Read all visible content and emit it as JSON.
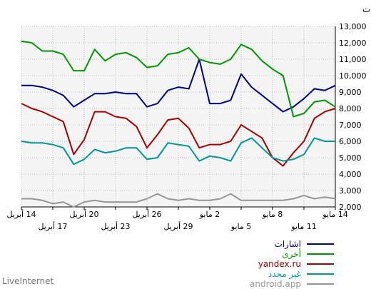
{
  "chart_data": {
    "type": "line",
    "title": "المرات",
    "y_ticks": [
      "2,000",
      "3,000",
      "4,000",
      "5,000",
      "6,000",
      "7,000",
      "8,000",
      "9,000",
      "10,000",
      "11,000",
      "12,000",
      "13,000"
    ],
    "ylim": [
      2000,
      13000
    ],
    "grid": true,
    "x_top_labels": [
      "14 مايو",
      "8 مايو",
      "2 مايو",
      "26 أبريل",
      "20 أبريل",
      "14 أبريل"
    ],
    "x_bottom_labels": [
      "11 مايو",
      "5 مايو",
      "29 أبريل",
      "23 أبريل",
      "17 أبريل"
    ],
    "x_range_days": 30,
    "legend_position": "bottom-right",
    "series": [
      {
        "name": "اشارات",
        "color": "#00007f",
        "values": [
          9400,
          9100,
          9200,
          8600,
          8100,
          7800,
          8300,
          8800,
          9300,
          10100,
          8500,
          8300,
          8300,
          11000,
          9200,
          9300,
          9100,
          8300,
          8100,
          8900,
          8900,
          9000,
          8900,
          8900,
          8500,
          8100,
          8800,
          9100,
          9300,
          9400,
          9400
        ]
      },
      {
        "name": "أخرى",
        "color": "#009600",
        "values": [
          8100,
          8500,
          8400,
          7700,
          7500,
          10000,
          10400,
          10900,
          11600,
          11900,
          11000,
          10700,
          10800,
          11000,
          11700,
          11400,
          11300,
          10600,
          10500,
          11100,
          11400,
          11300,
          10900,
          11600,
          10300,
          10300,
          11300,
          11500,
          11500,
          12000,
          12100
        ]
      },
      {
        "name": "yandex.ru",
        "color": "#a00000",
        "values": [
          8000,
          7800,
          7400,
          6000,
          5300,
          4500,
          5000,
          6200,
          6600,
          7000,
          6000,
          5800,
          5800,
          5600,
          6800,
          7400,
          7300,
          6400,
          5600,
          6900,
          7400,
          7500,
          7800,
          7800,
          6100,
          5200,
          7200,
          7500,
          7800,
          8000,
          8300
        ]
      },
      {
        "name": "غير محدد",
        "color": "#009696",
        "values": [
          6000,
          6000,
          6200,
          5200,
          4900,
          4800,
          5000,
          5600,
          6200,
          5900,
          4800,
          5000,
          5100,
          4800,
          5700,
          5800,
          5900,
          5000,
          4900,
          5600,
          5600,
          5400,
          5300,
          5500,
          4900,
          4600,
          5600,
          5800,
          5900,
          5900,
          6000
        ]
      },
      {
        "name": "android.app",
        "color": "#969696",
        "values": [
          2500,
          2600,
          2500,
          2700,
          2500,
          2400,
          2400,
          2400,
          2400,
          2400,
          2800,
          2500,
          2400,
          2400,
          2500,
          2400,
          2500,
          2800,
          2500,
          2300,
          2300,
          2300,
          2300,
          2400,
          2300,
          2000,
          2300,
          2200,
          2400,
          2500,
          2500
        ]
      }
    ]
  },
  "footer": {
    "watermark": "LiveInternet"
  }
}
